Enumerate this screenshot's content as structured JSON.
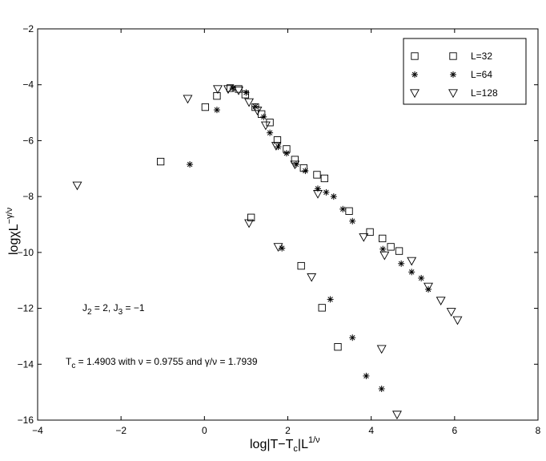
{
  "chart_data": {
    "type": "scatter",
    "xlim": [
      -4,
      8
    ],
    "ylim": [
      -16,
      -2
    ],
    "xticks": [
      -4,
      -2,
      0,
      2,
      4,
      6,
      8
    ],
    "yticks": [
      -16,
      -14,
      -12,
      -10,
      -8,
      -6,
      -4,
      -2
    ],
    "xlabel": "log|T−T_c|L^{1/ν}",
    "ylabel": "logχL^{−γ/ν}",
    "grid": false,
    "legend_position": "top-right",
    "series": [
      {
        "name": "L=32",
        "marker": "square",
        "points": [
          [
            -1.05,
            -6.75
          ],
          [
            0.02,
            -4.8
          ],
          [
            0.3,
            -4.4
          ],
          [
            0.62,
            -4.12
          ],
          [
            0.82,
            -4.15
          ],
          [
            0.98,
            -4.35
          ],
          [
            1.22,
            -4.8
          ],
          [
            1.37,
            -5.05
          ],
          [
            1.57,
            -5.35
          ],
          [
            1.75,
            -5.98
          ],
          [
            1.97,
            -6.3
          ],
          [
            2.17,
            -6.68
          ],
          [
            2.38,
            -6.98
          ],
          [
            2.7,
            -7.22
          ],
          [
            2.88,
            -7.35
          ],
          [
            1.12,
            -8.75
          ],
          [
            3.47,
            -8.52
          ],
          [
            3.97,
            -9.27
          ],
          [
            4.27,
            -9.5
          ],
          [
            4.47,
            -9.8
          ],
          [
            4.67,
            -9.95
          ],
          [
            2.32,
            -10.48
          ],
          [
            2.82,
            -11.98
          ],
          [
            3.2,
            -13.38
          ]
        ]
      },
      {
        "name": "L=64",
        "marker": "star",
        "points": [
          [
            -0.35,
            -6.85
          ],
          [
            0.3,
            -4.9
          ],
          [
            0.68,
            -4.12
          ],
          [
            1.0,
            -4.28
          ],
          [
            1.22,
            -4.78
          ],
          [
            1.42,
            -5.15
          ],
          [
            1.57,
            -5.72
          ],
          [
            1.77,
            -6.22
          ],
          [
            1.97,
            -6.45
          ],
          [
            2.2,
            -6.85
          ],
          [
            2.42,
            -7.08
          ],
          [
            2.72,
            -7.72
          ],
          [
            2.92,
            -7.85
          ],
          [
            3.1,
            -8.0
          ],
          [
            3.32,
            -8.45
          ],
          [
            3.55,
            -8.88
          ],
          [
            4.28,
            -9.88
          ],
          [
            4.72,
            -10.4
          ],
          [
            4.97,
            -10.7
          ],
          [
            5.2,
            -10.92
          ],
          [
            5.37,
            -11.32
          ],
          [
            1.86,
            -9.85
          ],
          [
            3.02,
            -11.68
          ],
          [
            3.55,
            -13.05
          ],
          [
            3.88,
            -14.42
          ],
          [
            4.25,
            -14.88
          ]
        ]
      },
      {
        "name": "L=128",
        "marker": "triangle-down",
        "points": [
          [
            -3.05,
            -7.6
          ],
          [
            -0.4,
            -4.5
          ],
          [
            0.32,
            -4.15
          ],
          [
            0.57,
            -4.15
          ],
          [
            0.82,
            -4.2
          ],
          [
            1.07,
            -4.62
          ],
          [
            1.27,
            -4.92
          ],
          [
            1.47,
            -5.45
          ],
          [
            1.72,
            -6.18
          ],
          [
            2.17,
            -6.85
          ],
          [
            2.72,
            -7.9
          ],
          [
            3.82,
            -9.45
          ],
          [
            4.32,
            -10.1
          ],
          [
            4.97,
            -10.3
          ],
          [
            5.37,
            -11.22
          ],
          [
            5.67,
            -11.72
          ],
          [
            5.92,
            -12.12
          ],
          [
            6.07,
            -12.42
          ],
          [
            1.07,
            -8.95
          ],
          [
            1.77,
            -9.8
          ],
          [
            2.57,
            -10.88
          ],
          [
            4.25,
            -13.45
          ],
          [
            4.62,
            -15.8
          ]
        ]
      }
    ],
    "annotations": [
      {
        "text": "J_2 = 2, J_3 = −1",
        "x": -3.05,
        "y": -12
      },
      {
        "text": "T_c = 1.4903 with ν = 0.9755 and γ/ν = 1.7939",
        "x": -3.3,
        "y": -14.05
      }
    ]
  }
}
